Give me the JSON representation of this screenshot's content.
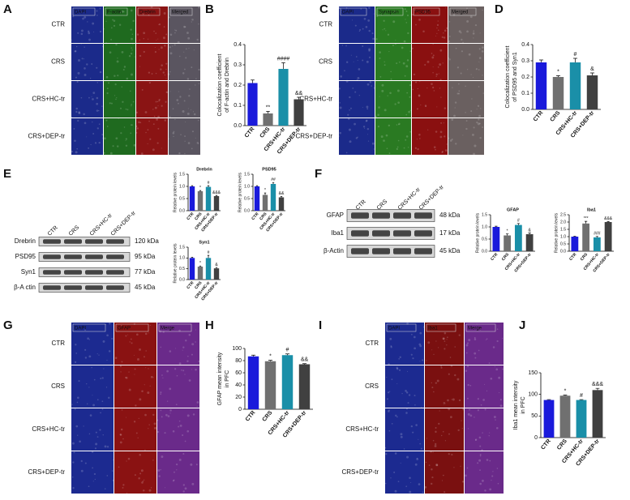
{
  "panel_letters": [
    "A",
    "B",
    "C",
    "D",
    "E",
    "F",
    "G",
    "H",
    "I",
    "J"
  ],
  "image_panels": [
    {
      "channels": [
        "DAPI",
        "F-actin",
        "Drebrin",
        "Merged"
      ],
      "colors": [
        "#1b2a8a",
        "#1f6a1f",
        "#8a1414",
        "#5a5560"
      ],
      "rows": [
        "CTR",
        "CRS",
        "CRS+HC-tr",
        "CRS+DEP-tr"
      ]
    },
    {
      "channels": [
        "DAPI",
        "Synapsin",
        "PSD95",
        "Merged"
      ],
      "colors": [
        "#1b2a8a",
        "#2a7a22",
        "#8a1010",
        "#6a6060"
      ],
      "rows": [
        "CTR",
        "CRS",
        "CRS+HC-tr",
        "CRS+DEP-tr"
      ]
    },
    {
      "channels": [
        "DAPI",
        "GFAP",
        "Merge"
      ],
      "colors": [
        "#1c2a90",
        "#8a1212",
        "#6a2a8a"
      ],
      "rows": [
        "CTR",
        "CRS",
        "CRS+HC-tr",
        "CRS+DEP-tr"
      ]
    },
    {
      "channels": [
        "DAPI",
        "Iba1",
        "Merge"
      ],
      "colors": [
        "#1c2a90",
        "#7a1010",
        "#6a2a8a"
      ],
      "rows": [
        "CTR",
        "CRS",
        "CRS+HC-tr",
        "CRS+DEP-tr"
      ]
    }
  ],
  "blots": [
    {
      "lanes": [
        "CTR",
        "CRS",
        "CRS+HC-tr",
        "CRS+DEP-tr"
      ],
      "bands": [
        {
          "name": "Drebrin",
          "size": "120 kDa"
        },
        {
          "name": "PSD95",
          "size": "95 kDa"
        },
        {
          "name": "Syn1",
          "size": "77 kDa"
        },
        {
          "name": "β-A ctin",
          "size": "45 kDa"
        }
      ]
    },
    {
      "lanes": [
        "CTR",
        "CRS",
        "CRS+HC-tr",
        "CRS+DEP-tr"
      ],
      "bands": [
        {
          "name": "GFAP",
          "size": "48 kDa"
        },
        {
          "name": "Iba1",
          "size": "17 kDa"
        },
        {
          "name": "β-Actin",
          "size": "45 kDa"
        }
      ]
    }
  ],
  "chart_data": [
    {
      "type": "bar",
      "ylabel": [
        "Colocalization coefficient",
        "of F-actin and Drebrin"
      ],
      "categories": [
        "CTR",
        "CRS",
        "CRS+HC-tr",
        "CRS+DEP-tr"
      ],
      "values": [
        0.21,
        0.06,
        0.28,
        0.13
      ],
      "error": [
        0.015,
        0.01,
        0.03,
        0.01
      ],
      "annotations": [
        null,
        "**",
        "####",
        "&&"
      ],
      "colors": [
        "#1a1adb",
        "#707070",
        "#1a8fa8",
        "#404040"
      ],
      "ylim": [
        0,
        0.4
      ],
      "yticks": [
        {
          "value": 0,
          "label": "0.0"
        },
        0.1,
        0.2,
        0.3,
        0.4
      ]
    },
    {
      "type": "bar",
      "ylabel": [
        "Colocalization coefficient",
        "of PSD95 and Syn1"
      ],
      "categories": [
        "CTR",
        "CRS",
        "CRS+HC-tr",
        "CRS+DEP-tr"
      ],
      "values": [
        0.29,
        0.2,
        0.29,
        0.21
      ],
      "error": [
        0.015,
        0.008,
        0.025,
        0.015
      ],
      "annotations": [
        null,
        "*",
        "#",
        "&"
      ],
      "colors": [
        "#1a1adb",
        "#707070",
        "#1a8fa8",
        "#404040"
      ],
      "ylim": [
        0,
        0.4
      ],
      "yticks": [
        {
          "value": 0,
          "label": "0.0"
        },
        0.1,
        0.2,
        0.3,
        0.4
      ]
    },
    {
      "type": "bar",
      "title": "Drebrin",
      "ylabel": [
        "Relative protein levels"
      ],
      "categories": [
        "CTR",
        "CRS",
        "CRS+HC-tr",
        "CRS+DEP-tr"
      ],
      "values": [
        1.0,
        0.8,
        0.98,
        0.6
      ],
      "error": [
        0.03,
        0.03,
        0.05,
        0.03
      ],
      "annotations": [
        null,
        "*",
        "#",
        "&&&"
      ],
      "colors": [
        "#1a1adb",
        "#707070",
        "#1a8fa8",
        "#404040"
      ],
      "ylim": [
        0,
        1.5
      ],
      "yticks": [
        {
          "value": 0,
          "label": "0.0"
        },
        0.5,
        {
          "value": 1,
          "label": "1.0"
        },
        1.5
      ]
    },
    {
      "type": "bar",
      "title": "PSD95",
      "ylabel": [
        "Relative protein levels"
      ],
      "categories": [
        "CTR",
        "CRS",
        "CRS+HC-tr",
        "CRS+DEP-tr"
      ],
      "values": [
        1.0,
        0.65,
        1.1,
        0.55
      ],
      "error": [
        0.03,
        0.08,
        0.06,
        0.04
      ],
      "annotations": [
        null,
        "*",
        "##",
        "&&"
      ],
      "colors": [
        "#1a1adb",
        "#707070",
        "#1a8fa8",
        "#404040"
      ],
      "ylim": [
        0,
        1.5
      ],
      "yticks": [
        {
          "value": 0,
          "label": "0.0"
        },
        0.5,
        {
          "value": 1,
          "label": "1.0"
        },
        1.5
      ]
    },
    {
      "type": "bar",
      "title": "Syn1",
      "ylabel": [
        "Relative protein levels"
      ],
      "categories": [
        "CTR",
        "CRS",
        "CRS+HC-tr",
        "CRS+DEP-tr"
      ],
      "values": [
        1.0,
        0.6,
        1.0,
        0.52
      ],
      "error": [
        0.03,
        0.03,
        0.12,
        0.04
      ],
      "annotations": [
        null,
        "*",
        "#",
        "&"
      ],
      "colors": [
        "#1a1adb",
        "#707070",
        "#1a8fa8",
        "#404040"
      ],
      "ylim": [
        0,
        1.5
      ],
      "yticks": [
        {
          "value": 0,
          "label": "0.0"
        },
        0.5,
        {
          "value": 1,
          "label": "1.0"
        },
        1.5
      ]
    },
    {
      "type": "bar",
      "title": "GFAP",
      "ylabel": [
        "Relative protein levels"
      ],
      "categories": [
        "CTR",
        "CRS",
        "CRS+HC-tr",
        "CRS+DEP-tr"
      ],
      "values": [
        1.0,
        0.65,
        1.08,
        0.7
      ],
      "error": [
        0.03,
        0.06,
        0.06,
        0.05
      ],
      "annotations": [
        null,
        "*",
        "#",
        "&"
      ],
      "colors": [
        "#1a1adb",
        "#707070",
        "#1a8fa8",
        "#404040"
      ],
      "ylim": [
        0,
        1.5
      ],
      "yticks": [
        {
          "value": 0,
          "label": "0.0"
        },
        0.5,
        {
          "value": 1,
          "label": "1.0"
        },
        1.5
      ]
    },
    {
      "type": "bar",
      "title": "Iba1",
      "ylabel": [
        "Relative protein levels"
      ],
      "categories": [
        "CTR",
        "CRS",
        "CRS+HC-tr",
        "CRS+DEP-tr"
      ],
      "values": [
        1.0,
        1.9,
        0.95,
        2.0
      ],
      "error": [
        0.03,
        0.15,
        0.06,
        0.04
      ],
      "annotations": [
        null,
        "***",
        "###",
        "&&&"
      ],
      "colors": [
        "#1a1adb",
        "#707070",
        "#1a8fa8",
        "#404040"
      ],
      "ylim": [
        0,
        2.5
      ],
      "yticks": [
        {
          "value": 0,
          "label": "0.0"
        },
        0.5,
        {
          "value": 1,
          "label": "1.0"
        },
        1.5,
        {
          "value": 2,
          "label": "2.0"
        },
        2.5
      ]
    },
    {
      "type": "bar",
      "ylabel": [
        "GFAP mean intensity",
        "in PFC"
      ],
      "categories": [
        "CTR",
        "CRS",
        "CRS+HC-tr",
        "CRS+DEP-tr"
      ],
      "values": [
        87,
        79,
        89,
        74
      ],
      "error": [
        2,
        1.5,
        2,
        1
      ],
      "annotations": [
        null,
        "*",
        "#",
        "&&"
      ],
      "colors": [
        "#1a1adb",
        "#707070",
        "#1a8fa8",
        "#404040"
      ],
      "ylim": [
        0,
        100
      ],
      "yticks": [
        0,
        20,
        40,
        60,
        80,
        100
      ]
    },
    {
      "type": "bar",
      "ylabel": [
        "Iba1 mean intensity",
        "in PFC"
      ],
      "categories": [
        "CTR",
        "CRS",
        "CRS+HC-tr",
        "CRS+DEP-tr"
      ],
      "values": [
        87,
        97,
        87,
        110
      ],
      "error": [
        1,
        1.5,
        1,
        4
      ],
      "annotations": [
        null,
        "*",
        "#",
        "&&&"
      ],
      "colors": [
        "#1a1adb",
        "#707070",
        "#1a8fa8",
        "#404040"
      ],
      "ylim": [
        0,
        150
      ],
      "yticks": [
        0,
        50,
        100,
        150
      ]
    }
  ]
}
